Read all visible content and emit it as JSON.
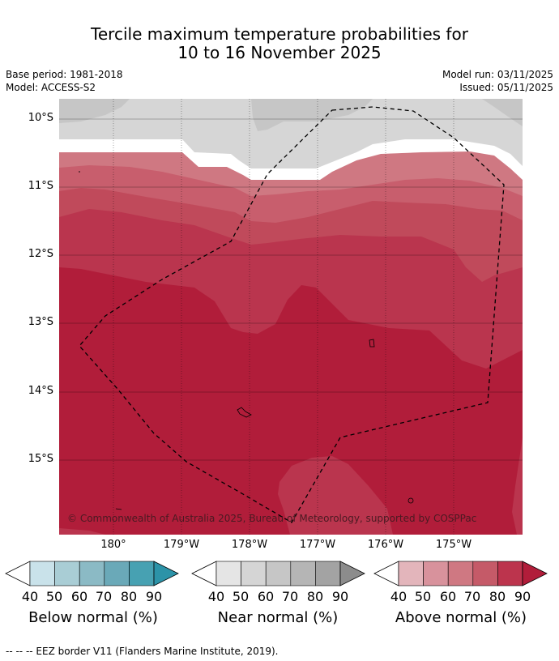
{
  "title": {
    "line1": "Tercile maximum temperature probabilities for",
    "line2": "10 to 16 November 2025"
  },
  "meta": {
    "base_period": "Base period: 1981-2018",
    "model": "Model: ACCESS-S2",
    "model_run": "Model run: 03/11/2025",
    "issued": "Issued: 05/11/2025"
  },
  "map": {
    "latitude_labels": [
      "10°S",
      "11°S",
      "12°S",
      "13°S",
      "14°S",
      "15°S"
    ],
    "longitude_labels": [
      "180°",
      "179°W",
      "178°W",
      "177°W",
      "176°W",
      "175°W"
    ],
    "copyright": "© Commonwealth of Australia 2025, Bureau of Meteorology, supported by COSPPac",
    "colors": {
      "near_light": "#d6d6d6",
      "near_mid": "#c6c6c6",
      "above_40": "#d7919b",
      "above_50": "#cf7882",
      "above_60": "#c85e6d",
      "above_70": "#c04a5b",
      "above_80": "#ba354e",
      "above_90": "#b11d3a"
    }
  },
  "colorbars": [
    {
      "name": "below",
      "label": "Below normal (%)",
      "ticks": [
        "40",
        "50",
        "60",
        "70",
        "80",
        "90"
      ],
      "colors": [
        "#c9e2ea",
        "#a9cdd5",
        "#8bbac5",
        "#6aa9b8",
        "#47a1b2",
        "#2c93a8"
      ]
    },
    {
      "name": "near",
      "label": "Near normal (%)",
      "ticks": [
        "40",
        "50",
        "60",
        "70",
        "80",
        "90"
      ],
      "colors": [
        "#e5e5e5",
        "#d5d5d5",
        "#c6c6c6",
        "#b5b5b5",
        "#a3a3a3",
        "#8c8c8c"
      ]
    },
    {
      "name": "above",
      "label": "Above normal (%)",
      "ticks": [
        "40",
        "50",
        "60",
        "70",
        "80",
        "90"
      ],
      "colors": [
        "#e3b5bb",
        "#d8929c",
        "#cf7882",
        "#c55a68",
        "#bc344d",
        "#b11d3a"
      ]
    }
  ],
  "footer": "--  --  -- EEZ border V11 (Flanders Marine Institute, 2019)."
}
